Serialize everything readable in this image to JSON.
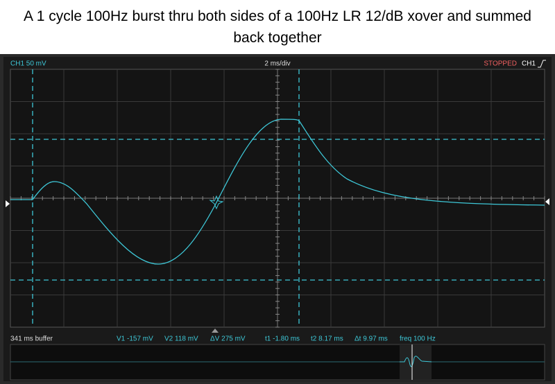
{
  "header": {
    "title": "A 1 cycle 100Hz burst thru both sides of a 100Hz LR 12/dB xover and summed back together"
  },
  "top_bar": {
    "channel_scale": "CH1 50 mV",
    "timebase": "2 ms/div",
    "status": "STOPPED",
    "trigger_channel": "CH1"
  },
  "bottom_bar": {
    "buffer": "341 ms buffer",
    "v1": "V1 -157 mV",
    "v2": "V2 118 mV",
    "dv": "ΔV 275 mV",
    "t1": "t1 -1.80 ms",
    "t2": "t2 8.17 ms",
    "dt": "Δt 9.97 ms",
    "freq": "freq 100 Hz"
  }
}
